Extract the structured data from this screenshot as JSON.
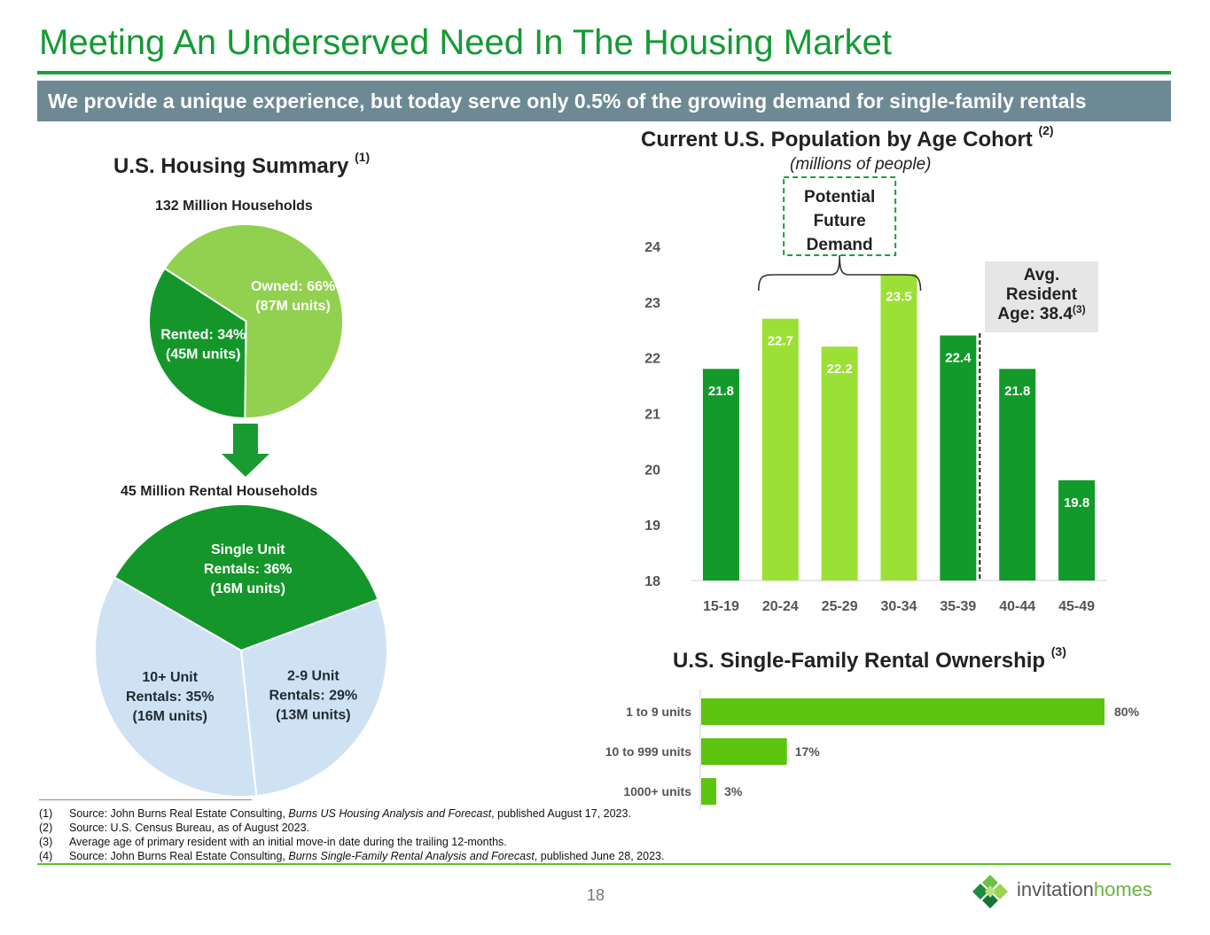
{
  "header": {
    "title": "Meeting An Underserved Need In The Housing Market",
    "banner": "We provide a unique experience, but today serve only 0.5% of the growing demand for single-family rentals"
  },
  "housing_summary": {
    "title": "U.S. Housing Summary",
    "footnote_ref": "(1)",
    "households_label": "132 Million Households",
    "rental_households_label": "45 Million Rental Households"
  },
  "population": {
    "title": "Current U.S. Population by Age Cohort",
    "footnote_ref": "(2)",
    "subtitle": "(millions of people)",
    "potential_label": [
      "Potential",
      "Future",
      "Demand"
    ],
    "avg_label": [
      "Avg.",
      "Resident",
      "Age: 38.4"
    ],
    "avg_ref": "(3)"
  },
  "sfr": {
    "title": "U.S. Single-Family Rental Ownership",
    "footnote_ref": "(3)"
  },
  "footnotes": [
    {
      "num": "(1)",
      "pre": "Source: John Burns Real Estate Consulting, ",
      "em": "Burns US Housing Analysis and Forecast",
      "post": ", published August 17, 2023."
    },
    {
      "num": "(2)",
      "pre": "Source: U.S. Census Bureau, as of August 2023.",
      "em": "",
      "post": ""
    },
    {
      "num": "(3)",
      "pre": "Average age of primary resident with an initial move-in date during the trailing 12-months.",
      "em": "",
      "post": ""
    },
    {
      "num": "(4)",
      "pre": "Source: John Burns Real Estate Consulting, ",
      "em": "Burns Single-Family Rental Analysis and Forecast",
      "post": ", published June 28, 2023."
    }
  ],
  "page_number": "18",
  "logo": {
    "word1": "invitation",
    "word2": "homes"
  },
  "colors": {
    "brand_green": "#159a34",
    "dark_green": "#0e9a2a",
    "light_green": "#8fd14f",
    "lime": "#9be135",
    "bar_green": "#5cc40e",
    "pale_blue": "#cfe2f3",
    "banner": "#6d8a94"
  },
  "chart_data": [
    {
      "type": "pie",
      "title": "132 Million Households",
      "slices": [
        {
          "label": [
            "Owned: 66%",
            "(87M units)"
          ],
          "value": 66,
          "color": "#92d050"
        },
        {
          "label": [
            "Rented: 34%",
            "(45M units)"
          ],
          "value": 34,
          "color": "#14962a"
        }
      ]
    },
    {
      "type": "pie",
      "title": "45 Million Rental Households",
      "slices": [
        {
          "label": [
            "Single Unit",
            "Rentals: 36%",
            "(16M units)"
          ],
          "value": 36,
          "color": "#14962a"
        },
        {
          "label": [
            "2-9 Unit",
            "Rentals: 29%",
            "(13M units)"
          ],
          "value": 29,
          "color": "#cfe2f3"
        },
        {
          "label": [
            "10+ Unit",
            "Rentals: 35%",
            "(16M units)"
          ],
          "value": 35,
          "color": "#cfe2f3"
        }
      ]
    },
    {
      "type": "bar",
      "title": "Current U.S. Population by Age Cohort",
      "categories": [
        "15-19",
        "20-24",
        "25-29",
        "30-34",
        "35-39",
        "40-44",
        "45-49"
      ],
      "values": [
        21.8,
        22.7,
        22.2,
        23.5,
        22.4,
        21.8,
        19.8
      ],
      "value_labels": [
        "21.8",
        "22.7",
        "22.2",
        "23.5",
        "22.4",
        "21.8",
        "19.8"
      ],
      "highlighted": [
        false,
        true,
        true,
        true,
        false,
        false,
        false
      ],
      "ylim": [
        18,
        24
      ],
      "yticks": [
        "18",
        "19",
        "20",
        "21",
        "22",
        "23",
        "24"
      ],
      "grid": false
    },
    {
      "type": "bar",
      "orientation": "horizontal",
      "title": "U.S. Single-Family Rental Ownership",
      "categories": [
        "1 to 9 units",
        "10 to 999 units",
        "1000+ units"
      ],
      "values": [
        80,
        17,
        3
      ],
      "value_labels": [
        "80%",
        "17%",
        "3%"
      ]
    }
  ]
}
